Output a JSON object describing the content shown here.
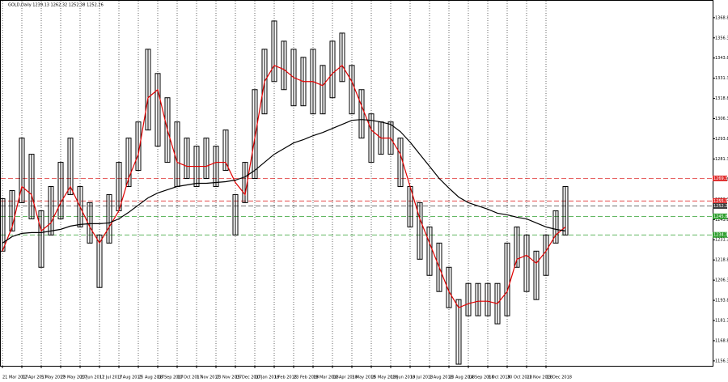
{
  "chart_data": {
    "type": "hilo",
    "title": "GOLD,Daily  1239.13 1262.32 1252.38 1252.26",
    "categories": [
      "21 Mar 2017",
      null,
      "12 Apr 2017",
      null,
      "5 May 2017",
      null,
      "29 May 2017",
      null,
      "20 Jun 2017",
      null,
      "12 Jul 2017",
      null,
      "3 Aug 2017",
      null,
      "25 Aug 2017",
      null,
      "18 Sep 2017",
      null,
      "10 Oct 2017",
      null,
      "1 Nov 2017",
      null,
      "23 Nov 2017",
      null,
      "15 Dec 2017",
      null,
      "10 Jan 2018",
      null,
      "1 Feb 2018",
      null,
      "23 Feb 2018",
      null,
      "19 Mar 2018",
      null,
      "10 Apr 2018",
      null,
      "3 May 2018",
      null,
      "25 May 2018",
      null,
      "18 Jun 2018",
      null,
      "10 Jul 2018",
      null,
      "1 Aug 2018",
      null,
      "23 Aug 2018",
      null,
      "14 Sep 2018",
      null,
      "8 Oct 2018",
      null,
      "30 Oct 2018",
      null,
      "21 Nov 2018",
      null,
      "13 Dec 2018",
      null,
      null
    ],
    "high": [
      1256.8,
      1261.8,
      1294.3,
      1284.3,
      1249.3,
      1264.3,
      1279.3,
      1294.3,
      1264.3,
      1254.3,
      1234.3,
      1259.3,
      1279.3,
      1294.3,
      1304.3,
      1349.3,
      1334.3,
      1319.3,
      1304.3,
      1294.3,
      1289.3,
      1294.3,
      1289.3,
      1299.3,
      1259.3,
      1279.3,
      1324.3,
      1349.3,
      1366.8,
      1354.3,
      1349.3,
      1344.3,
      1349.3,
      1339.3,
      1354.3,
      1359.3,
      1339.3,
      1324.3,
      1309.3,
      1304.3,
      1304.3,
      1294.3,
      1264.3,
      1254.3,
      1239.3,
      1229.3,
      1214.3,
      1194.3,
      1204.3,
      1204.3,
      1204.3,
      1204.3,
      1229.3,
      1239.3,
      1234.3,
      1224.3,
      1234.3,
      1249.3,
      1264.3
    ],
    "low": [
      1224.3,
      1236.8,
      1254.3,
      1244.3,
      1214.3,
      1234.3,
      1244.3,
      1259.3,
      1239.3,
      1229.3,
      1201.8,
      1229.3,
      1249.3,
      1264.3,
      1274.3,
      1299.3,
      1289.3,
      1279.3,
      1264.3,
      1269.3,
      1264.3,
      1269.3,
      1264.3,
      1274.3,
      1234.3,
      1254.3,
      1269.3,
      1309.3,
      1329.3,
      1324.3,
      1314.3,
      1314.3,
      1309.3,
      1309.3,
      1319.3,
      1329.3,
      1309.3,
      1294.3,
      1279.3,
      1284.3,
      1284.3,
      1264.3,
      1239.3,
      1219.3,
      1209.3,
      1199.3,
      1189.3,
      1154.3,
      1184.3,
      1184.3,
      1184.3,
      1179.3,
      1184.3,
      1214.3,
      1199.3,
      1194.3,
      1209.3,
      1229.3,
      1234.3
    ],
    "color": "#000000",
    "overlays": [
      {
        "color": "#e00000",
        "values": [
          1224.3,
          1239.3,
          1264.3,
          1259.3,
          1236.8,
          1241.8,
          1254.3,
          1264.3,
          1251.8,
          1239.3,
          1229.3,
          1239.3,
          1249.3,
          1269.3,
          1284.3,
          1319.3,
          1324.3,
          1299.3,
          1279.3,
          1276.8,
          1276.8,
          1276.8,
          1279.3,
          1279.3,
          1266.8,
          1259.3,
          1294.3,
          1329.3,
          1339.3,
          1336.8,
          1331.8,
          1329.3,
          1329.3,
          1326.8,
          1334.3,
          1339.3,
          1329.3,
          1314.3,
          1299.3,
          1294.3,
          1294.3,
          1284.3,
          1264.3,
          1244.3,
          1229.3,
          1214.3,
          1199.3,
          1189.3,
          1191.8,
          1193.3,
          1193.3,
          1191.8,
          1199.3,
          1219.3,
          1221.8,
          1216.8,
          1224.3,
          1234.3,
          1239.3
        ]
      },
      {
        "color": "#000000",
        "values": [
          1229.3,
          1233.3,
          1235.3,
          1235.8,
          1235.8,
          1236.8,
          1237.8,
          1239.8,
          1240.8,
          1241.3,
          1241.3,
          1241.8,
          1244.3,
          1248.3,
          1252.8,
          1257.3,
          1260.3,
          1262.3,
          1264.3,
          1265.3,
          1266.3,
          1266.3,
          1266.8,
          1267.3,
          1268.3,
          1270.3,
          1274.3,
          1279.3,
          1284.3,
          1287.8,
          1291.3,
          1293.3,
          1295.8,
          1297.8,
          1300.3,
          1302.8,
          1305.3,
          1305.8,
          1305.3,
          1304.3,
          1302.8,
          1298.3,
          1291.8,
          1284.3,
          1276.8,
          1269.3,
          1263.3,
          1257.8,
          1254.3,
          1252.3,
          1250.3,
          1247.8,
          1246.8,
          1245.3,
          1244.3,
          1241.8,
          1239.3,
          1237.8,
          1236.8
        ]
      }
    ],
    "levels": [
      {
        "value": 1269.32,
        "color": "#e03030"
      },
      {
        "value": 1255.36,
        "color": "#e03030"
      },
      {
        "value": 1252.26,
        "color": "#404040"
      },
      {
        "value": 1245.82,
        "color": "#30a030"
      },
      {
        "value": 1234.37,
        "color": "#30a030"
      }
    ],
    "ylim": [
      1153.3,
      1379.3
    ],
    "yticks": [
      1156.35,
      1168.85,
      1181.35,
      1193.85,
      1206.35,
      1218.85,
      1231.35,
      1243.85,
      1256.35,
      1268.85,
      1281.35,
      1293.85,
      1306.35,
      1318.85,
      1331.35,
      1343.85,
      1356.35,
      1368.85
    ],
    "grid": true
  }
}
